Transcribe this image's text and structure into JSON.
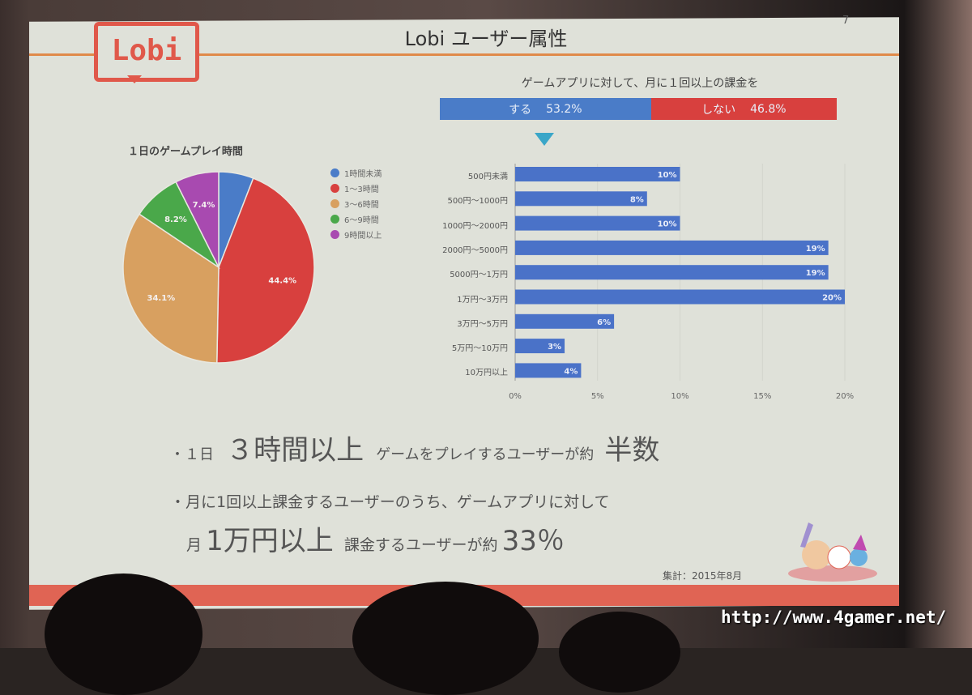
{
  "slide": {
    "logo_text": "Lobi",
    "title": "Lobi ユーザー属性",
    "page_number": "7",
    "date_note": "集計：2015年8月",
    "watermark": "http://www.4gamer.net/",
    "colors": {
      "accent": "#e0584a",
      "bar": "#4a72c8"
    }
  },
  "summary": {
    "question": "ゲームアプリに対して、月に１回以上の課金を",
    "yes_label": "する",
    "yes_value": "53.2%",
    "no_label": "しない",
    "no_value": "46.8%"
  },
  "bullets": {
    "b1": [
      "・１日",
      "３時間以上",
      "ゲームをプレイするユーザーが約",
      "半数"
    ],
    "b2": "・月に1回以上課金するユーザーのうち、ゲームアプリに対して",
    "b3": [
      "月",
      "1万円以上",
      "課金するユーザーが約",
      "33％"
    ]
  },
  "chart_data": [
    {
      "type": "pie",
      "title": "１日のゲームプレイ時間",
      "legend_position": "right",
      "categories": [
        "1時間未満",
        "1〜3時間",
        "3〜6時間",
        "6〜9時間",
        "9時間以上"
      ],
      "values": [
        5.9,
        44.4,
        34.1,
        8.2,
        7.4
      ],
      "data_labels": [
        "",
        "44.4%",
        "34.1%",
        "8.2%",
        "7.4%"
      ],
      "colors": [
        "#4a7cc8",
        "#d8403e",
        "#d8a060",
        "#4aa84a",
        "#a84ab0"
      ]
    },
    {
      "type": "bar",
      "orientation": "horizontal",
      "categories": [
        "500円未満",
        "500円〜1000円",
        "1000円〜2000円",
        "2000円〜5000円",
        "5000円〜1万円",
        "1万円〜3万円",
        "3万円〜5万円",
        "5万円〜10万円",
        "10万円以上"
      ],
      "values": [
        10,
        8,
        10,
        19,
        19,
        20,
        6,
        3,
        4
      ],
      "data_labels": [
        "10%",
        "8%",
        "10%",
        "19%",
        "19%",
        "20%",
        "6%",
        "3%",
        "4%"
      ],
      "xlim": [
        0,
        20
      ],
      "xticks": [
        "0%",
        "5%",
        "10%",
        "15%",
        "20%"
      ],
      "grid": true
    }
  ]
}
